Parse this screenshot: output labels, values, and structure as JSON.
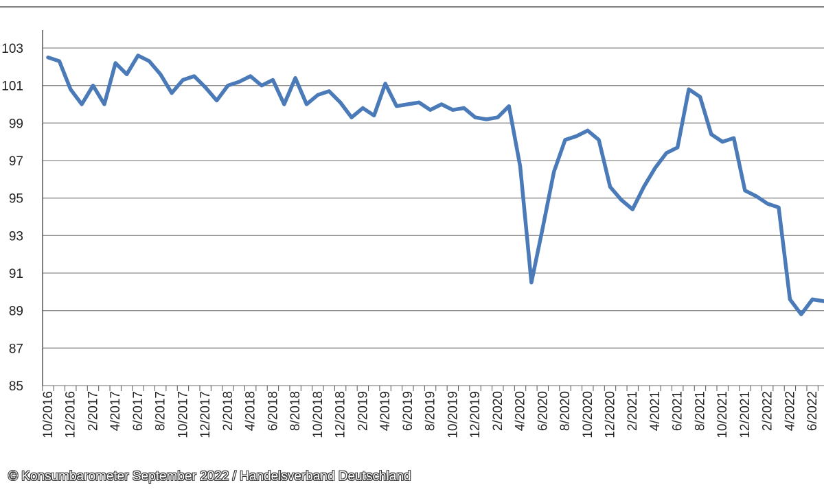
{
  "chart_data": {
    "type": "line",
    "title": "",
    "xlabel": "",
    "ylabel": "",
    "ylim": [
      85,
      104
    ],
    "yticks": [
      85,
      87,
      89,
      91,
      93,
      95,
      97,
      99,
      101,
      103
    ],
    "grid": "horizontal",
    "legend": "none",
    "line_color": "#4a7ab8",
    "x_tick_labels": [
      "10/2016",
      "12/2016",
      "2/2017",
      "4/2017",
      "6/2017",
      "8/2017",
      "10/2017",
      "12/2017",
      "2/2018",
      "4/2018",
      "6/2018",
      "8/2018",
      "10/2018",
      "12/2018",
      "2/2019",
      "4/2019",
      "6/2019",
      "8/2019",
      "10/2019",
      "12/2019",
      "2/2020",
      "4/2020",
      "6/2020",
      "8/2020",
      "10/2020",
      "12/2020",
      "2/2021",
      "4/2021",
      "6/2021",
      "8/2021",
      "10/2021",
      "12/2021",
      "2/2022",
      "4/2022",
      "6/2022"
    ],
    "x": [
      "10/2016",
      "11/2016",
      "12/2016",
      "1/2017",
      "2/2017",
      "3/2017",
      "4/2017",
      "5/2017",
      "6/2017",
      "7/2017",
      "8/2017",
      "9/2017",
      "10/2017",
      "11/2017",
      "12/2017",
      "1/2018",
      "2/2018",
      "3/2018",
      "4/2018",
      "5/2018",
      "6/2018",
      "7/2018",
      "8/2018",
      "9/2018",
      "10/2018",
      "11/2018",
      "12/2018",
      "1/2019",
      "2/2019",
      "3/2019",
      "4/2019",
      "5/2019",
      "6/2019",
      "7/2019",
      "8/2019",
      "9/2019",
      "10/2019",
      "11/2019",
      "12/2019",
      "1/2020",
      "2/2020",
      "3/2020",
      "4/2020",
      "5/2020",
      "6/2020",
      "7/2020",
      "8/2020",
      "9/2020",
      "10/2020",
      "11/2020",
      "12/2020",
      "1/2021",
      "2/2021",
      "3/2021",
      "4/2021",
      "5/2021",
      "6/2021",
      "7/2021",
      "8/2021",
      "9/2021",
      "10/2021",
      "11/2021",
      "12/2021",
      "1/2022",
      "2/2022",
      "3/2022",
      "4/2022",
      "5/2022",
      "6/2022",
      "7/2022"
    ],
    "series": [
      {
        "values": [
          102.5,
          102.3,
          100.8,
          100.0,
          101.0,
          100.0,
          102.2,
          101.6,
          102.6,
          102.3,
          101.6,
          100.6,
          101.3,
          101.5,
          100.9,
          100.2,
          101.0,
          101.2,
          101.5,
          101.0,
          101.3,
          100.0,
          101.4,
          100.0,
          100.5,
          100.7,
          100.1,
          99.3,
          99.8,
          99.4,
          101.1,
          99.9,
          100.0,
          100.1,
          99.7,
          100.0,
          99.7,
          99.8,
          99.3,
          99.2,
          99.3,
          99.9,
          96.7,
          90.5,
          93.4,
          96.4,
          98.1,
          98.3,
          98.6,
          98.1,
          95.6,
          94.9,
          94.4,
          95.6,
          96.6,
          97.4,
          97.7,
          100.8,
          100.4,
          98.4,
          98.0,
          98.2,
          95.4,
          95.1,
          94.7,
          94.5,
          89.6,
          88.8,
          89.6,
          89.5
        ]
      }
    ]
  },
  "credit": "© Konsumbarometer September 2022 / Handelsverband Deutschland"
}
